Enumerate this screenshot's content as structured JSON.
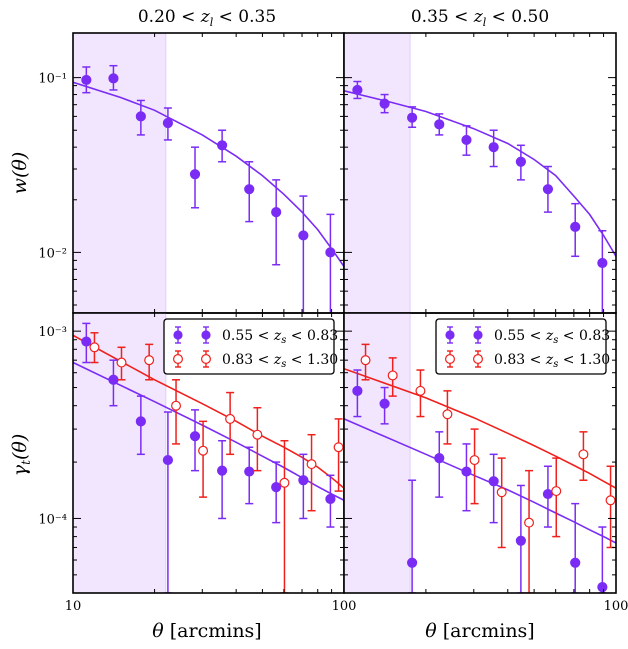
{
  "colors": {
    "purple": "#7a2cf5",
    "red": "#f0201c",
    "shade": "#f1e6fd"
  },
  "chart_data": [
    {
      "type": "scatter",
      "panel": "w-left",
      "title": "0.20 < z_l < 0.35",
      "ylabel": "w(θ)",
      "xlabel": "",
      "xscale": "log",
      "yscale": "log",
      "xlim": [
        10,
        100
      ],
      "ylim": [
        0.0045,
        0.18
      ],
      "yticks": [
        {
          "v": 0.1,
          "label": "10⁻¹"
        },
        {
          "v": 0.01,
          "label": "10⁻²"
        }
      ],
      "shade": [
        10,
        22
      ],
      "series": [
        {
          "color": "purple",
          "marker": "filled",
          "x": [
            11.2,
            14.1,
            17.8,
            22.4,
            28.2,
            35.5,
            44.7,
            56.2,
            70.8,
            89.1
          ],
          "y": [
            0.097,
            0.099,
            0.06,
            0.055,
            0.028,
            0.041,
            0.023,
            0.017,
            0.0125,
            0.01
          ],
          "yerr_lo": [
            0.082,
            0.085,
            0.047,
            0.044,
            0.018,
            0.033,
            0.015,
            0.0085,
            0.003,
            0.003
          ],
          "yerr_hi": [
            0.115,
            0.117,
            0.074,
            0.067,
            0.04,
            0.05,
            0.033,
            0.026,
            0.021,
            0.0165
          ],
          "fit_x": [
            10,
            15,
            20,
            30,
            40,
            50,
            60,
            70,
            80,
            90,
            100
          ],
          "fit_y": [
            0.094,
            0.077,
            0.065,
            0.047,
            0.0355,
            0.0275,
            0.0215,
            0.017,
            0.0135,
            0.0105,
            0.0083
          ]
        }
      ]
    },
    {
      "type": "scatter",
      "panel": "w-right",
      "title": "0.35 < z_l < 0.50",
      "ylabel": "",
      "xlabel": "",
      "xscale": "log",
      "yscale": "log",
      "xlim": [
        10,
        100
      ],
      "ylim": [
        0.0045,
        0.18
      ],
      "shade": [
        10,
        17.5
      ],
      "series": [
        {
          "color": "purple",
          "marker": "filled",
          "x": [
            11.2,
            14.1,
            17.8,
            22.4,
            28.2,
            35.5,
            44.7,
            56.2,
            70.8,
            89.1
          ],
          "y": [
            0.085,
            0.071,
            0.059,
            0.054,
            0.044,
            0.04,
            0.033,
            0.023,
            0.014,
            0.0087
          ],
          "yerr_lo": [
            0.076,
            0.063,
            0.052,
            0.047,
            0.036,
            0.031,
            0.026,
            0.017,
            0.0095,
            0.004
          ],
          "yerr_hi": [
            0.095,
            0.08,
            0.068,
            0.062,
            0.053,
            0.05,
            0.041,
            0.031,
            0.019,
            0.0133
          ],
          "fit_x": [
            10,
            15,
            20,
            30,
            40,
            50,
            60,
            70,
            80,
            90,
            100
          ],
          "fit_y": [
            0.084,
            0.072,
            0.064,
            0.051,
            0.042,
            0.034,
            0.0275,
            0.021,
            0.0165,
            0.0125,
            0.0095
          ]
        }
      ]
    },
    {
      "type": "scatter",
      "panel": "g-left",
      "ylabel": "γ_t(θ)",
      "xlabel": "θ [arcmins]",
      "xscale": "log",
      "yscale": "log",
      "xlim": [
        10,
        100
      ],
      "ylim": [
        4e-05,
        0.00125
      ],
      "xticks": [
        {
          "v": 10,
          "label": "10"
        },
        {
          "v": 100,
          "label": "100"
        }
      ],
      "yticks": [
        {
          "v": 0.001,
          "label": "10⁻³"
        },
        {
          "v": 0.0001,
          "label": "10⁻⁴"
        }
      ],
      "shade": [
        10,
        22
      ],
      "legend": {
        "position": "top-right",
        "entries": [
          "0.55 < z_s < 0.83",
          "0.83 < z_s < 1.30"
        ]
      },
      "series": [
        {
          "name": "0.55 < z_s < 0.83",
          "color": "purple",
          "marker": "filled",
          "x": [
            11.2,
            14.1,
            17.8,
            22.4,
            28.2,
            35.5,
            44.7,
            56.2,
            70.8,
            89.1
          ],
          "y": [
            0.00088,
            0.00055,
            0.00033,
            0.000205,
            0.000275,
            0.00018,
            0.000178,
            0.000147,
            0.00016,
            0.000127
          ],
          "yerr_lo": [
            0.00068,
            0.0004,
            0.00022,
            4e-05,
            0.00018,
            0.0001,
            0.00012,
            9.5e-05,
            0.0001,
            9e-05
          ],
          "yerr_hi": [
            0.0011,
            0.0007,
            0.00045,
            0.00037,
            0.00038,
            0.00026,
            0.00024,
            0.0002,
            0.00022,
            0.00017
          ],
          "fit_x": [
            10,
            20,
            30,
            40,
            50,
            60,
            70,
            80,
            90,
            100
          ],
          "fit_y": [
            0.00068,
            0.00042,
            0.000315,
            0.000255,
            0.000215,
            0.000187,
            0.000165,
            0.000148,
            0.000135,
            0.000125
          ]
        },
        {
          "name": "0.83 < z_s < 1.30",
          "color": "red",
          "marker": "open",
          "x": [
            12.0,
            15.1,
            19.1,
            24.0,
            30.2,
            38.0,
            47.9,
            60.3,
            75.9,
            95.5
          ],
          "y": [
            0.00082,
            0.00068,
            0.0007,
            0.0004,
            0.00023,
            0.00034,
            0.00028,
            0.000155,
            0.000195,
            0.00024
          ],
          "yerr_lo": [
            0.00068,
            0.00055,
            0.00055,
            0.00025,
            0.00013,
            0.00022,
            0.00018,
            4e-05,
            0.00011,
            0.00014
          ],
          "yerr_hi": [
            0.00098,
            0.00082,
            0.00085,
            0.00055,
            0.00033,
            0.00047,
            0.00039,
            0.00026,
            0.00028,
            0.00034
          ],
          "fit_x": [
            10,
            20,
            30,
            40,
            50,
            60,
            70,
            80,
            90,
            100
          ],
          "fit_y": [
            0.00095,
            0.00055,
            0.00041,
            0.00033,
            0.000275,
            0.00024,
            0.000212,
            0.000188,
            0.000165,
            0.000145
          ]
        }
      ]
    },
    {
      "type": "scatter",
      "panel": "g-right",
      "ylabel": "",
      "xlabel": "θ [arcmins]",
      "xscale": "log",
      "yscale": "log",
      "xlim": [
        10,
        100
      ],
      "ylim": [
        4e-05,
        0.00125
      ],
      "xticks": [
        {
          "v": 100,
          "label": "100"
        }
      ],
      "shade": [
        10,
        17.5
      ],
      "legend": {
        "position": "top-right",
        "entries": [
          "0.55 < z_s < 0.83",
          "0.83 < z_s < 1.30"
        ]
      },
      "series": [
        {
          "name": "0.55 < z_s < 0.83",
          "color": "purple",
          "marker": "filled",
          "x": [
            11.2,
            14.1,
            17.8,
            22.4,
            28.2,
            35.5,
            44.7,
            56.2,
            70.8,
            89.1
          ],
          "y": [
            0.00048,
            0.00041,
            5.8e-05,
            0.00021,
            0.000178,
            0.000158,
            7.6e-05,
            0.000135,
            5.8e-05,
            4.3e-05
          ],
          "yerr_lo": [
            0.00035,
            0.00032,
            4e-05,
            0.00013,
            0.00011,
            9.5e-05,
            4e-05,
            9e-05,
            4e-05,
            4e-05
          ],
          "yerr_hi": [
            0.00062,
            0.0005,
            0.00016,
            0.00029,
            0.00025,
            0.00022,
            0.00015,
            0.00019,
            0.00012,
            9e-05
          ],
          "fit_x": [
            10,
            20,
            30,
            40,
            50,
            60,
            70,
            80,
            90,
            100
          ],
          "fit_y": [
            0.00034,
            0.00022,
            0.00017,
            0.000142,
            0.000122,
            0.000107,
            9.6e-05,
            8.7e-05,
            8e-05,
            7.4e-05
          ]
        },
        {
          "name": "0.83 < z_s < 1.30",
          "color": "red",
          "marker": "open",
          "x": [
            12.0,
            15.1,
            19.1,
            24.0,
            30.2,
            38.0,
            47.9,
            60.3,
            75.9,
            95.5
          ],
          "y": [
            0.0007,
            0.00058,
            0.00048,
            0.00036,
            0.000205,
            0.000138,
            9.5e-05,
            0.00014,
            0.00022,
            0.000125
          ],
          "yerr_lo": [
            0.00055,
            0.00045,
            0.00035,
            0.00025,
            0.00012,
            7e-05,
            4e-05,
            8e-05,
            0.00016,
            7e-05
          ],
          "yerr_hi": [
            0.00085,
            0.00072,
            0.00062,
            0.00048,
            0.0003,
            0.00021,
            0.00018,
            0.00021,
            0.00029,
            0.00019
          ],
          "fit_x": [
            10,
            20,
            30,
            40,
            50,
            60,
            70,
            80,
            90,
            100
          ],
          "fit_y": [
            0.00063,
            0.00044,
            0.000345,
            0.000285,
            0.000245,
            0.000215,
            0.000192,
            0.000174,
            0.000158,
            0.000145
          ]
        }
      ]
    }
  ]
}
